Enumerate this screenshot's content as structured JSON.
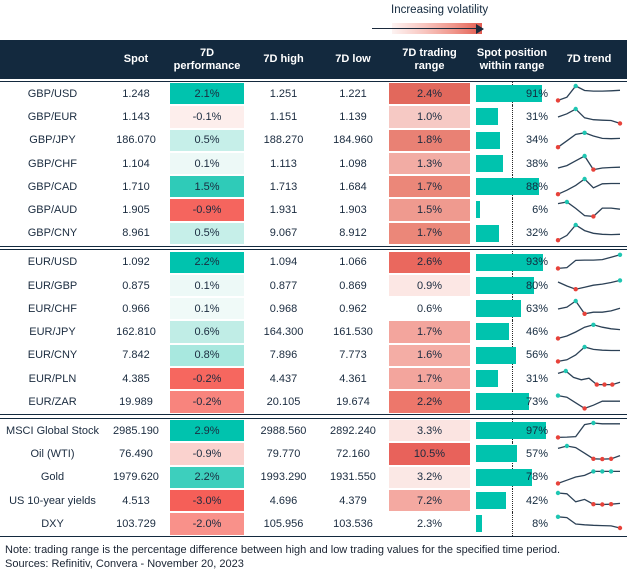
{
  "legend": {
    "label": "Increasing volatility"
  },
  "footer": {
    "note": "Note: trading range is the percentage difference between high and low trading values for the specified time period.",
    "sources": "Sources: Refinitiv, Convera - November 20, 2023"
  },
  "colors": {
    "header_navy": "#13293E",
    "accent_teal": "#00C3AE",
    "accent_red": "#F5655E",
    "spark_line": "#2C4156",
    "spark_high_dot": "#1FC6B2",
    "spark_low_dot": "#E7423A",
    "text_navy": "#1A2B3F"
  },
  "chart_data": {
    "type": "table",
    "columns": [
      "",
      "Spot",
      "7D performance",
      "7D high",
      "7D low",
      "7D trading range",
      "Spot position within range",
      "7D trend"
    ],
    "groups": [
      {
        "rows": [
          {
            "label": "GBP/USD",
            "spot": "1.248",
            "perf": "2.1%",
            "perf_color": "#00C3AE",
            "high": "1.251",
            "low": "1.221",
            "range": "2.4%",
            "range_color": "#E2685C",
            "position_pct": 91,
            "spark": {
              "points": [
                0.1,
                0.3,
                1.0,
                0.72,
                0.68,
                0.68,
                0.7,
                0.73
              ],
              "high": [
                2
              ],
              "low": [
                0
              ]
            }
          },
          {
            "label": "GBP/EUR",
            "spot": "1.143",
            "perf": "-0.1%",
            "perf_color": "#FDEEEC",
            "high": "1.151",
            "low": "1.139",
            "range": "1.0%",
            "range_color": "#F6C9C4",
            "position_pct": 31,
            "spark": {
              "points": [
                0.5,
                0.7,
                1.0,
                0.45,
                0.33,
                0.3,
                0.28,
                0.1
              ],
              "high": [
                2
              ],
              "low": [
                7
              ]
            }
          },
          {
            "label": "GBP/JPY",
            "spot": "186.070",
            "perf": "0.5%",
            "perf_color": "#C6EFE9",
            "high": "188.270",
            "low": "184.960",
            "range": "1.8%",
            "range_color": "#E98174",
            "position_pct": 34,
            "spark": {
              "points": [
                0.05,
                0.45,
                0.85,
                0.95,
                0.75,
                0.6,
                0.58,
                0.6
              ],
              "high": [
                3
              ],
              "low": [
                0
              ]
            }
          },
          {
            "label": "GBP/CHF",
            "spot": "1.104",
            "perf": "0.1%",
            "perf_color": "#EDF9F7",
            "high": "1.113",
            "low": "1.098",
            "range": "1.3%",
            "range_color": "#F2ACA4",
            "position_pct": 38,
            "spark": {
              "points": [
                0.25,
                0.4,
                0.7,
                1.0,
                0.15,
                0.25,
                0.28,
                0.3
              ],
              "high": [
                3
              ],
              "low": [
                4
              ]
            }
          },
          {
            "label": "GBP/CAD",
            "spot": "1.710",
            "perf": "1.5%",
            "perf_color": "#2FCBB8",
            "high": "1.713",
            "low": "1.684",
            "range": "1.7%",
            "range_color": "#EB8779",
            "position_pct": 88,
            "spark": {
              "points": [
                0.05,
                0.3,
                0.6,
                1.0,
                0.45,
                0.7,
                0.72,
                0.72
              ],
              "high": [
                3
              ],
              "low": [
                0
              ]
            }
          },
          {
            "label": "GBP/AUD",
            "spot": "1.905",
            "perf": "-0.9%",
            "perf_color": "#F5655E",
            "high": "1.931",
            "low": "1.903",
            "range": "1.5%",
            "range_color": "#EF9A8F",
            "position_pct": 6,
            "spark": {
              "points": [
                0.9,
                1.0,
                0.6,
                0.15,
                0.1,
                0.62,
                0.62,
                0.55
              ],
              "high": [
                1
              ],
              "low": [
                4
              ]
            }
          },
          {
            "label": "GBP/CNY",
            "spot": "8.961",
            "perf": "0.5%",
            "perf_color": "#C6EFE9",
            "high": "9.067",
            "low": "8.912",
            "range": "1.7%",
            "range_color": "#EB8779",
            "position_pct": 32,
            "spark": {
              "points": [
                0.05,
                0.35,
                1.0,
                0.65,
                0.48,
                0.42,
                0.4,
                0.42
              ],
              "high": [
                2
              ],
              "low": [
                0
              ]
            }
          }
        ]
      },
      {
        "rows": [
          {
            "label": "EUR/USD",
            "spot": "1.092",
            "perf": "2.2%",
            "perf_color": "#00C3AE",
            "high": "1.094",
            "low": "1.066",
            "range": "2.6%",
            "range_color": "#EA685E",
            "position_pct": 93,
            "spark": {
              "points": [
                0.1,
                0.15,
                0.6,
                0.62,
                0.62,
                0.65,
                0.8,
                0.95
              ],
              "high": [
                7
              ],
              "low": [
                0
              ]
            }
          },
          {
            "label": "EUR/GBP",
            "spot": "0.875",
            "perf": "0.1%",
            "perf_color": "#EDF9F7",
            "high": "0.877",
            "low": "0.869",
            "range": "0.9%",
            "range_color": "#FCE7E4",
            "position_pct": 80,
            "spark": {
              "points": [
                0.75,
                0.5,
                0.3,
                0.42,
                0.55,
                0.62,
                0.72,
                0.85
              ],
              "high": [
                7
              ],
              "low": [
                2
              ]
            }
          },
          {
            "label": "EUR/CHF",
            "spot": "0.966",
            "perf": "0.1%",
            "perf_color": "#F0FAF8",
            "high": "0.968",
            "low": "0.962",
            "range": "0.6%",
            "range_color": "#FFFFFF",
            "position_pct": 63,
            "spark": {
              "points": [
                0.5,
                0.62,
                1.0,
                0.2,
                0.3,
                0.3,
                0.38,
                0.55
              ],
              "high": [
                2
              ],
              "low": [
                3
              ]
            }
          },
          {
            "label": "EUR/JPY",
            "spot": "162.810",
            "perf": "0.6%",
            "perf_color": "#C0EDE6",
            "high": "164.300",
            "low": "161.530",
            "range": "1.7%",
            "range_color": "#F3A59D",
            "position_pct": 46,
            "spark": {
              "points": [
                0.1,
                0.25,
                0.5,
                0.8,
                0.95,
                0.8,
                0.7,
                0.65
              ],
              "high": [
                4
              ],
              "low": [
                0
              ]
            }
          },
          {
            "label": "EUR/CNY",
            "spot": "7.842",
            "perf": "0.8%",
            "perf_color": "#A8E8DF",
            "high": "7.896",
            "low": "7.773",
            "range": "1.6%",
            "range_color": "#F4ADA5",
            "position_pct": 56,
            "spark": {
              "points": [
                0.1,
                0.2,
                0.5,
                1.0,
                0.85,
                0.8,
                0.78,
                0.78
              ],
              "high": [
                3
              ],
              "low": [
                0
              ]
            }
          },
          {
            "label": "EUR/PLN",
            "spot": "4.385",
            "perf": "-0.2%",
            "perf_color": "#F6675F",
            "high": "4.437",
            "low": "4.361",
            "range": "1.7%",
            "range_color": "#F3A59D",
            "position_pct": 31,
            "spark": {
              "points": [
                0.85,
                1.0,
                0.6,
                0.45,
                0.55,
                0.15,
                0.15,
                0.15,
                0.3
              ],
              "high": [
                1
              ],
              "low": [
                5,
                6,
                7
              ]
            }
          },
          {
            "label": "EUR/ZAR",
            "spot": "19.989",
            "perf": "-0.2%",
            "perf_color": "#F8847D",
            "high": "20.105",
            "low": "19.674",
            "range": "2.2%",
            "range_color": "#ED776B",
            "position_pct": 73,
            "spark": {
              "points": [
                0.9,
                0.8,
                0.45,
                0.1,
                0.3,
                0.55,
                0.55,
                0.55
              ],
              "high": [
                0
              ],
              "low": [
                3
              ]
            }
          }
        ]
      },
      {
        "rows": [
          {
            "label": "MSCI Global Stock",
            "spot": "2985.190",
            "perf": "2.9%",
            "perf_color": "#00C3AE",
            "high": "2988.560",
            "low": "2892.240",
            "range": "3.3%",
            "range_color": "#FBE4E1",
            "position_pct": 97,
            "spark": {
              "points": [
                0.1,
                0.12,
                0.15,
                0.9,
                1.0,
                0.95,
                0.95,
                0.95
              ],
              "high": [
                4
              ],
              "low": [
                0
              ]
            }
          },
          {
            "label": "Oil (WTI)",
            "spot": "76.490",
            "perf": "-0.9%",
            "perf_color": "#FAD2CE",
            "high": "79.770",
            "low": "72.160",
            "range": "10.5%",
            "range_color": "#E8625B",
            "position_pct": 57,
            "spark": {
              "points": [
                0.85,
                1.0,
                0.9,
                0.55,
                0.2,
                0.18,
                0.2,
                0.4
              ],
              "high": [
                1
              ],
              "low": [
                4,
                5,
                6
              ]
            }
          },
          {
            "label": "Gold",
            "spot": "1979.620",
            "perf": "2.2%",
            "perf_color": "#3DCFBD",
            "high": "1993.290",
            "low": "1931.550",
            "range": "3.2%",
            "range_color": "#FBE8E5",
            "position_pct": 78,
            "spark": {
              "points": [
                0.1,
                0.3,
                0.5,
                0.6,
                0.85,
                0.85,
                0.85,
                0.85
              ],
              "high": [
                4,
                5,
                6
              ],
              "low": [
                0
              ]
            }
          },
          {
            "label": "US 10-year yields",
            "spot": "4.513",
            "perf": "-3.0%",
            "perf_color": "#F55F58",
            "high": "4.696",
            "low": "4.379",
            "range": "7.2%",
            "range_color": "#F4A9A1",
            "position_pct": 42,
            "spark": {
              "points": [
                1.0,
                0.95,
                0.45,
                0.6,
                0.3,
                0.28,
                0.3,
                0.35
              ],
              "high": [
                0
              ],
              "low": [
                4,
                5,
                6
              ]
            }
          },
          {
            "label": "DXY",
            "spot": "103.729",
            "perf": "-2.0%",
            "perf_color": "#F9918A",
            "high": "105.956",
            "low": "103.536",
            "range": "2.3%",
            "range_color": "#FFFFFF",
            "position_pct": 8,
            "spark": {
              "points": [
                0.95,
                0.9,
                0.5,
                0.45,
                0.42,
                0.4,
                0.38,
                0.25
              ],
              "high": [
                0
              ],
              "low": [
                7
              ]
            }
          }
        ]
      }
    ]
  }
}
